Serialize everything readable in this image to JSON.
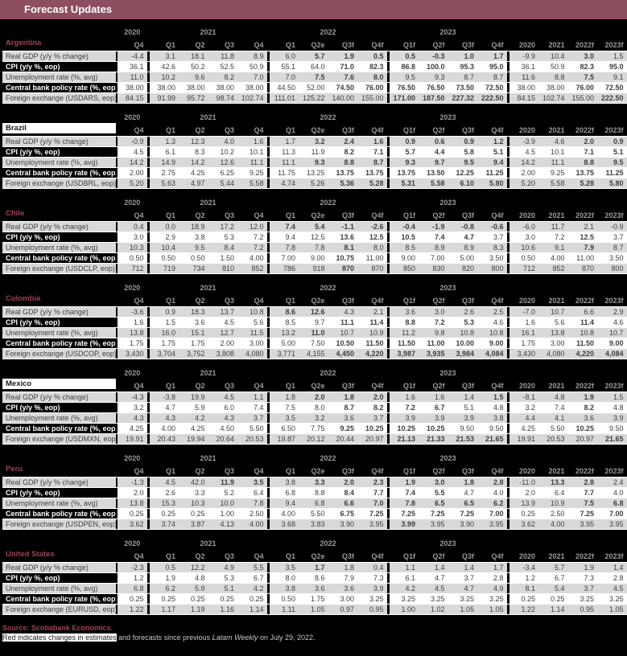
{
  "title": "Forecast Updates",
  "colors": {
    "title_bar": "#8d4e60",
    "country_accent": "#a34152",
    "changed_value_red": "#ee2e24",
    "row_shade": "#d9d9d9",
    "page_background": "#000000"
  },
  "columns": {
    "groups": [
      {
        "year": "2020",
        "cols": [
          "Q4"
        ]
      },
      {
        "year": "2021",
        "cols": [
          "Q1",
          "Q2",
          "Q3",
          "Q4"
        ]
      },
      {
        "year": "2022",
        "cols": [
          "Q1",
          "Q2e",
          "Q3f",
          "Q4f"
        ]
      },
      {
        "year": "2023",
        "cols": [
          "Q1f",
          "Q2f",
          "Q3f",
          "Q4f"
        ]
      },
      {
        "year": "",
        "cols": [
          "2020",
          "2021",
          "2022f",
          "2023f"
        ]
      }
    ]
  },
  "red_marker_note": "values suffixed with * are rendered in red (changed estimates/forecasts)",
  "tables": [
    {
      "country": "Argentina",
      "header_style": "dark",
      "rows": [
        {
          "label": "Real GDP (y/y % change)",
          "values": [
            "-4.4",
            "3.1",
            "18.1",
            "11.8",
            "8.9",
            "6.0",
            "5.7*",
            "1.9*",
            "0.5*",
            "0.5*",
            "-0.3*",
            "1.0*",
            "1.7*",
            "-9.9",
            "10.4",
            "3.0*",
            "1.5"
          ]
        },
        {
          "label": "CPI (y/y %, eop)",
          "values": [
            "36.1",
            "42.6",
            "50.2",
            "52.5",
            "50.9",
            "55.1",
            "64.0",
            "71.0*",
            "82.3*",
            "86.8*",
            "100.0*",
            "95.3*",
            "95.0*",
            "36.1",
            "50.9",
            "82.3*",
            "95.0*"
          ]
        },
        {
          "label": "Unemployment rate (%, avg)",
          "values": [
            "11.0",
            "10.2",
            "9.6",
            "8.2",
            "7.0",
            "7.0",
            "7.5*",
            "7.6*",
            "8.0*",
            "9.5",
            "9.3",
            "8.7",
            "8.7",
            "11.6",
            "8.8",
            "7.5*",
            "9.1"
          ]
        },
        {
          "label": "Central bank policy rate (%, eop)",
          "values": [
            "38.00",
            "38.00",
            "38.00",
            "38.00",
            "38.00",
            "44.50",
            "52.00",
            "74.50*",
            "76.00*",
            "76.50*",
            "76.50*",
            "73.50*",
            "72.50*",
            "38.00",
            "38.00",
            "76.00*",
            "72.50*"
          ]
        },
        {
          "label": "Foreign exchange (USDARS, eop)",
          "values": [
            "84.15",
            "91.99",
            "95.72",
            "98.74",
            "102.74",
            "111.01",
            "125.22",
            "140.00",
            "155.00",
            "171.00*",
            "187.50*",
            "227.32*",
            "222.50*",
            "84.15",
            "102.74",
            "155.00",
            "222.50*"
          ]
        }
      ]
    },
    {
      "country": "Brazil",
      "header_style": "light",
      "rows": [
        {
          "label": "Real GDP (y/y % change)",
          "values": [
            "-0.9",
            "1.3",
            "12.3",
            "4.0",
            "1.6",
            "1.7",
            "3.2*",
            "2.4*",
            "1.6*",
            "0.9*",
            "0.6*",
            "0.9*",
            "1.2*",
            "-3.9",
            "4.6",
            "2.0*",
            "0.9*"
          ]
        },
        {
          "label": "CPI (y/y %, eop)",
          "values": [
            "4.5",
            "6.1",
            "8.3",
            "10.2",
            "10.1",
            "11.3",
            "11.9",
            "8.2*",
            "7.1*",
            "5.7*",
            "4.4*",
            "5.8*",
            "5.1*",
            "4.5",
            "10.1",
            "7.1*",
            "5.1*"
          ]
        },
        {
          "label": "Unemployment rate (%, avg)",
          "values": [
            "14.2",
            "14.9",
            "14.2",
            "12.6",
            "11.1",
            "11.1",
            "9.3*",
            "8.8*",
            "8.7*",
            "9.3*",
            "9.7*",
            "9.5*",
            "9.4*",
            "14.2",
            "11.1",
            "8.8*",
            "9.5*"
          ]
        },
        {
          "label": "Central bank policy rate (%, eop)",
          "values": [
            "2.00",
            "2.75",
            "4.25",
            "6.25",
            "9.25",
            "11.75",
            "13.25",
            "13.75*",
            "13.75*",
            "13.75*",
            "13.50*",
            "12.25*",
            "11.25*",
            "2.00",
            "9.25",
            "13.75*",
            "11.25*"
          ]
        },
        {
          "label": "Foreign exchange (USDBRL, eop)",
          "values": [
            "5.20",
            "5.63",
            "4.97",
            "5.44",
            "5.58",
            "4.74",
            "5.26",
            "5.36*",
            "5.28*",
            "5.31*",
            "5.58*",
            "6.10*",
            "5.80*",
            "5.20",
            "5.58",
            "5.28*",
            "5.80*"
          ]
        }
      ]
    },
    {
      "country": "Chile",
      "header_style": "dark",
      "rows": [
        {
          "label": "Real GDP (y/y % change)",
          "values": [
            "0.4",
            "0.0",
            "18.9",
            "17.2",
            "12.0",
            "7.4*",
            "5.4*",
            "-1.1*",
            "-2.6*",
            "-0.4*",
            "-1.9*",
            "-0.8*",
            "-0.6*",
            "-6.0",
            "11.7",
            "2.1",
            "-0.9"
          ]
        },
        {
          "label": "CPI (y/y %, eop)",
          "values": [
            "3.0",
            "2.9",
            "3.8",
            "5.3",
            "7.2",
            "9.4",
            "12.5",
            "13.6*",
            "12.5*",
            "10.5*",
            "7.4*",
            "4.7*",
            "3.7",
            "3.0",
            "7.2",
            "12.5*",
            "3.7"
          ]
        },
        {
          "label": "Unemployment rate (%, avg)",
          "values": [
            "10.3",
            "10.4",
            "9.5",
            "8.4",
            "7.2",
            "7.8",
            "7.8",
            "8.1*",
            "8.0",
            "8.5",
            "8.9",
            "8.9",
            "8.3",
            "10.6",
            "9.1",
            "7.9*",
            "8.7"
          ]
        },
        {
          "label": "Central bank policy rate (%, eop)",
          "values": [
            "0.50",
            "0.50",
            "0.50",
            "1.50",
            "4.00",
            "7.00",
            "9.00",
            "10.75*",
            "11.00",
            "9.00",
            "7.00",
            "5.00",
            "3.50",
            "0.50",
            "4.00",
            "11.00",
            "3.50"
          ]
        },
        {
          "label": "Foreign exchange (USDCLP, eop)",
          "values": [
            "712",
            "719",
            "734",
            "810",
            "852",
            "786",
            "918",
            "870*",
            "870",
            "850",
            "830",
            "820",
            "800",
            "712",
            "852",
            "870",
            "800"
          ]
        }
      ]
    },
    {
      "country": "Colombia",
      "header_style": "dark",
      "rows": [
        {
          "label": "Real GDP (y/y % change)",
          "values": [
            "-3.6",
            "0.9",
            "18.3",
            "13.7",
            "10.8",
            "8.6*",
            "12.6*",
            "4.3",
            "2.1",
            "3.6",
            "3.0",
            "2.6",
            "2.5",
            "-7.0",
            "10.7",
            "6.6",
            "2.9"
          ]
        },
        {
          "label": "CPI (y/y %, eop)",
          "values": [
            "1.6",
            "1.5",
            "3.6",
            "4.5",
            "5.6",
            "8.5",
            "9.7",
            "11.1*",
            "11.4*",
            "8.8*",
            "7.2*",
            "5.3*",
            "4.6",
            "1.6",
            "5.6",
            "11.4*",
            "4.6"
          ]
        },
        {
          "label": "Unemployment rate (%, avg)",
          "values": [
            "13.8",
            "16.0",
            "15.1",
            "12.7",
            "11.5",
            "13.2",
            "11.0*",
            "10.7",
            "10.9",
            "11.2",
            "9.8",
            "10.8",
            "10.8",
            "16.1",
            "13.8",
            "10.8",
            "10.7"
          ]
        },
        {
          "label": "Central bank policy rate (%, eop)",
          "values": [
            "1.75",
            "1.75",
            "1.75",
            "2.00",
            "3.00",
            "5.00",
            "7.50",
            "10.50*",
            "11.50*",
            "11.50*",
            "11.00*",
            "10.00*",
            "9.00*",
            "1.75",
            "3.00",
            "11.50*",
            "9.00*"
          ]
        },
        {
          "label": "Foreign exchange (USDCOP, eop)",
          "values": [
            "3,430",
            "3,704",
            "3,752",
            "3,808",
            "4,080",
            "3,771",
            "4,155",
            "4,450*",
            "4,220*",
            "3,987*",
            "3,935*",
            "3,984*",
            "4,084*",
            "3,430",
            "4,080",
            "4,220*",
            "4,084*"
          ]
        }
      ]
    },
    {
      "country": "Mexico",
      "header_style": "light",
      "rows": [
        {
          "label": "Real GDP (y/y % change)",
          "values": [
            "-4.3",
            "-3.8",
            "19.9",
            "4.5",
            "1.1",
            "1.8",
            "2.0*",
            "1.8*",
            "2.0*",
            "1.6",
            "1.6",
            "1.4",
            "1.5*",
            "-8.1",
            "4.8",
            "1.9*",
            "1.5"
          ]
        },
        {
          "label": "CPI (y/y %, eop)",
          "values": [
            "3.2",
            "4.7",
            "5.9",
            "6.0",
            "7.4",
            "7.5",
            "8.0",
            "8.7*",
            "8.2*",
            "7.2*",
            "6.7*",
            "5.1",
            "4.8",
            "3.2",
            "7.4",
            "8.2*",
            "4.8"
          ]
        },
        {
          "label": "Unemployment rate (%, avg)",
          "values": [
            "4.3",
            "4.3",
            "4.2",
            "4.3",
            "3.7",
            "3.5",
            "3.2",
            "3.6",
            "3.7",
            "3.9",
            "3.9",
            "3.9",
            "3.8",
            "4.4",
            "4.1",
            "3.6",
            "3.9"
          ]
        },
        {
          "label": "Central bank policy rate (%, eop)",
          "values": [
            "4.25",
            "4.00",
            "4.25",
            "4.50",
            "5.50",
            "6.50",
            "7.75",
            "9.25*",
            "10.25*",
            "10.25*",
            "10.25*",
            "9.50",
            "9.50",
            "4.25",
            "5.50",
            "10.25*",
            "9.50"
          ]
        },
        {
          "label": "Foreign exchange (USDMXN, eop)",
          "values": [
            "19.91",
            "20.43",
            "19.94",
            "20.64",
            "20.53",
            "19.87",
            "20.12",
            "20.44",
            "20.97",
            "21.13*",
            "21.33*",
            "21.53*",
            "21.65*",
            "19.91",
            "20.53",
            "20.97",
            "21.65*"
          ]
        }
      ]
    },
    {
      "country": "Peru",
      "header_style": "dark",
      "rows": [
        {
          "label": "Real GDP (y/y % change)",
          "values": [
            "-1.3",
            "4.5",
            "42.0",
            "11.9*",
            "3.5*",
            "3.8",
            "3.3*",
            "2.0*",
            "2.3*",
            "1.9*",
            "3.0*",
            "1.8*",
            "2.8*",
            "-11.0",
            "13.3*",
            "2.8*",
            "2.4"
          ]
        },
        {
          "label": "CPI (y/y %, eop)",
          "values": [
            "2.0",
            "2.6",
            "3.3",
            "5.2",
            "6.4",
            "6.8",
            "8.8",
            "8.4*",
            "7.7*",
            "7.4*",
            "5.5*",
            "4.7",
            "4.0",
            "2.0",
            "6.4",
            "7.7*",
            "4.0"
          ]
        },
        {
          "label": "Unemployment rate (%, avg)",
          "values": [
            "13.8",
            "15.3",
            "10.3",
            "10.0",
            "7.8",
            "9.4",
            "6.8",
            "6.6*",
            "7.0*",
            "7.8*",
            "6.5*",
            "6.5*",
            "6.2*",
            "13.9",
            "10.9",
            "7.5*",
            "6.8*"
          ]
        },
        {
          "label": "Central bank policy rate (%, eop)",
          "values": [
            "0.25",
            "0.25",
            "0.25",
            "1.00",
            "2.50",
            "4.00",
            "5.50",
            "6.75*",
            "7.25*",
            "7.25*",
            "7.25*",
            "7.25*",
            "7.00*",
            "0.25",
            "2.50",
            "7.25*",
            "7.00*"
          ]
        },
        {
          "label": "Foreign exchange (USDPEN, eop)",
          "values": [
            "3.62",
            "3.74",
            "3.87",
            "4.13",
            "4.00",
            "3.68",
            "3.83",
            "3.90",
            "3.95",
            "3.99*",
            "3.95",
            "3.90",
            "3.95",
            "3.62",
            "4.00",
            "3.95",
            "3.95"
          ]
        }
      ]
    },
    {
      "country": "United States",
      "header_style": "dark",
      "rows": [
        {
          "label": "Real GDP (y/y % change)",
          "values": [
            "-2.3",
            "0.5",
            "12.2",
            "4.9",
            "5.5",
            "3.5",
            "1.7*",
            "1.8",
            "0.4",
            "1.1",
            "1.4",
            "1.4",
            "1.7",
            "-3.4",
            "5.7",
            "1.9",
            "1.4"
          ]
        },
        {
          "label": "CPI (y/y %, eop)",
          "values": [
            "1.2",
            "1.9",
            "4.8",
            "5.3",
            "6.7",
            "8.0",
            "8.6",
            "7.9",
            "7.3",
            "6.1",
            "4.7",
            "3.7",
            "2.8",
            "1.2",
            "6.7",
            "7.3",
            "2.8"
          ]
        },
        {
          "label": "Unemployment rate (%, avg)",
          "values": [
            "6.8",
            "6.2",
            "5.9",
            "5.1",
            "4.2",
            "3.8",
            "3.6",
            "3.6",
            "3.9",
            "4.2",
            "4.5",
            "4.7",
            "4.9",
            "8.1",
            "5.4",
            "3.7",
            "4.5"
          ]
        },
        {
          "label": "Central bank policy rate (%, eop)",
          "values": [
            "0.25",
            "0.25",
            "0.25",
            "0.25",
            "0.25",
            "0.50",
            "1.75",
            "3.00",
            "3.25",
            "3.25",
            "3.25",
            "3.25",
            "3.25",
            "0.25",
            "0.25",
            "3.25",
            "3.25"
          ]
        },
        {
          "label": "Foreign exchange (EURUSD, eop)",
          "values": [
            "1.22",
            "1.17",
            "1.19",
            "1.16",
            "1.14",
            "1.11",
            "1.05",
            "0.97",
            "0.95",
            "1.00",
            "1.02",
            "1.05",
            "1.05",
            "1.22",
            "1.14",
            "0.95",
            "1.05"
          ]
        }
      ]
    }
  ],
  "footer": {
    "source": "Source: Scotiabank Economics.",
    "note_highlight": "Red indicates changes in estimates",
    "note_rest_1": " and forecasts since previous ",
    "note_italic": "Latam Weekly",
    "note_rest_2": " on July 29, 2022."
  }
}
